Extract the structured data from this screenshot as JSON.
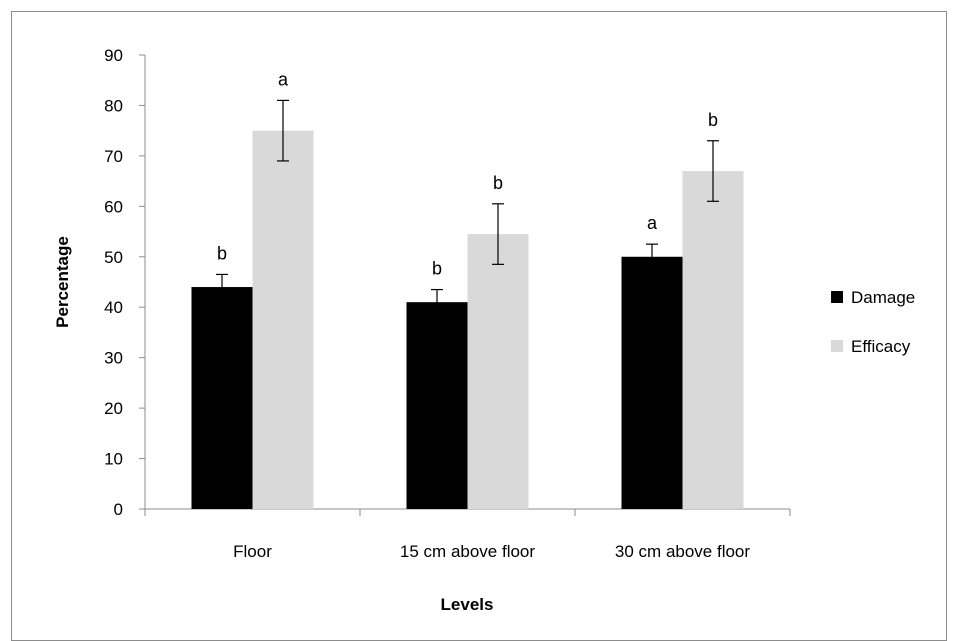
{
  "chart_data": {
    "type": "bar",
    "title": "",
    "xlabel": "Levels",
    "ylabel": "Percentage",
    "ylim": [
      0,
      90
    ],
    "ytick_step": 10,
    "categories": [
      "Floor",
      "15 cm above floor",
      "30 cm above floor"
    ],
    "series": [
      {
        "name": "Damage",
        "color": "#000000",
        "values": [
          44,
          41,
          50
        ],
        "errors": [
          2.5,
          2.5,
          2.5
        ],
        "labels": [
          "b",
          "b",
          "a"
        ]
      },
      {
        "name": "Efficacy",
        "color": "#d9d9d9",
        "values": [
          75,
          54.5,
          67
        ],
        "errors": [
          6,
          6,
          6
        ],
        "labels": [
          "a",
          "b",
          "b"
        ]
      }
    ],
    "legend_position": "right",
    "grid": false
  }
}
